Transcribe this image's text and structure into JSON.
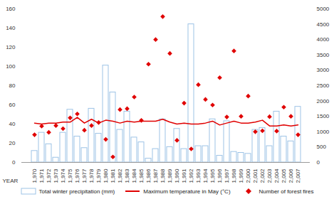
{
  "chart_data": {
    "type": "bar",
    "categories": [
      1970,
      1971,
      1972,
      1973,
      1974,
      1975,
      1976,
      1977,
      1978,
      1979,
      1980,
      1981,
      1982,
      1983,
      1984,
      1985,
      1986,
      1987,
      1988,
      1989,
      1990,
      1991,
      1992,
      1993,
      1994,
      1995,
      1996,
      1997,
      1998,
      1999,
      2000,
      2001,
      2002,
      2003,
      2004,
      2005,
      2006,
      2007
    ],
    "xlabel": "YEAR",
    "ylim": [
      0,
      160
    ],
    "yticks": [
      0,
      20,
      40,
      60,
      80,
      100,
      120,
      140,
      160
    ],
    "y2lim": [
      0,
      5000
    ],
    "y2ticks": [
      0,
      500,
      1000,
      1500,
      2000,
      2500,
      3000,
      3500,
      4000,
      4500,
      5000
    ],
    "legend": "bottom",
    "series": [
      {
        "name": "Total winter precipitation (mm)",
        "type": "bar",
        "color": "#9dc3e6",
        "values": [
          12,
          31,
          19,
          5,
          31,
          55,
          27,
          15,
          56,
          30,
          101,
          73,
          34,
          53,
          26,
          21,
          4,
          14,
          45,
          16,
          35,
          14,
          144,
          17,
          17,
          45,
          7,
          43,
          11,
          10,
          9,
          34,
          36,
          17,
          53,
          27,
          22,
          58
        ]
      },
      {
        "name": "Maximum temperature in May (°C)",
        "type": "line",
        "color": "#e00000",
        "values": [
          41,
          40,
          41,
          41,
          42,
          42,
          47,
          41,
          45,
          41,
          44,
          43,
          41,
          43,
          42,
          43,
          43,
          43,
          45,
          42,
          40,
          41,
          40,
          40,
          41,
          43,
          39,
          41,
          43,
          41,
          41,
          42,
          44,
          38,
          38,
          39,
          38,
          39
        ]
      },
      {
        "name": "Number of forest fires",
        "type": "scatter",
        "marker": "diamond",
        "color": "#e00000",
        "axis": "y2",
        "values": [
          900,
          1180,
          980,
          1200,
          1100,
          1450,
          1580,
          1050,
          1200,
          1300,
          750,
          180,
          1720,
          1750,
          2130,
          1370,
          3200,
          4000,
          4750,
          3550,
          720,
          1930,
          440,
          2530,
          2050,
          1870,
          2760,
          1480,
          3630,
          1500,
          2160,
          1000,
          1030,
          1490,
          1020,
          1800,
          1500,
          900
        ]
      }
    ]
  }
}
